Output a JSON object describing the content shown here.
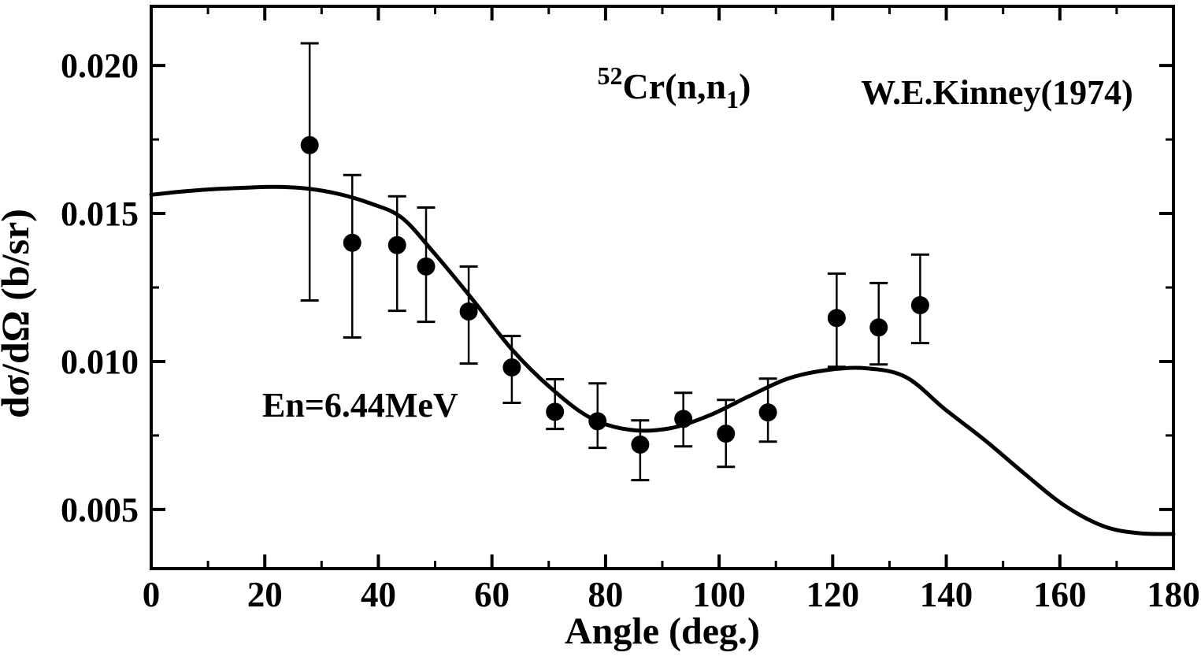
{
  "chart_data": {
    "type": "scatter",
    "title": "",
    "xlabel": "Angle (deg.)",
    "ylabel": "dσ/dΩ (b/sr)",
    "xlim": [
      0,
      180
    ],
    "ylim": [
      0.003,
      0.022
    ],
    "grid": false,
    "legend_position": "none",
    "x_major_ticks": [
      0,
      20,
      40,
      60,
      80,
      100,
      120,
      140,
      160,
      180
    ],
    "x_minor_ticks": [
      10,
      30,
      50,
      70,
      90,
      110,
      130,
      150,
      170
    ],
    "x_tick_labels": [
      "0",
      "20",
      "40",
      "60",
      "80",
      "100",
      "120",
      "140",
      "160",
      "180"
    ],
    "y_major_ticks": [
      0.005,
      0.01,
      0.015,
      0.02
    ],
    "y_minor_ticks": [
      0.0075,
      0.0125,
      0.0175
    ],
    "y_tick_labels": [
      "0.005",
      "0.010",
      "0.015",
      "0.020"
    ],
    "annotations": {
      "reaction": {
        "sup": "52",
        "body": "Cr(n,n",
        "sub": "1",
        "tail": ")"
      },
      "reference": "W.E.Kinney(1974)",
      "energy": "En=6.44MeV"
    },
    "series": [
      {
        "name": "W.E.Kinney(1974) experimental data",
        "type": "errorbar-scatter",
        "marker": "filled-circle",
        "color": "#000000",
        "points": [
          {
            "angle_deg": 27.9,
            "value": 0.01731,
            "upper": 0.02075,
            "lower": 0.01206
          },
          {
            "angle_deg": 35.4,
            "value": 0.01401,
            "upper": 0.0163,
            "lower": 0.01081
          },
          {
            "angle_deg": 43.3,
            "value": 0.01393,
            "upper": 0.01558,
            "lower": 0.01171
          },
          {
            "angle_deg": 48.4,
            "value": 0.01321,
            "upper": 0.0152,
            "lower": 0.01134
          },
          {
            "angle_deg": 55.9,
            "value": 0.01169,
            "upper": 0.01321,
            "lower": 0.00993
          },
          {
            "angle_deg": 63.5,
            "value": 0.0098,
            "upper": 0.01086,
            "lower": 0.0086
          },
          {
            "angle_deg": 71.1,
            "value": 0.0083,
            "upper": 0.0094,
            "lower": 0.00772
          },
          {
            "angle_deg": 78.6,
            "value": 0.00798,
            "upper": 0.00926,
            "lower": 0.00708
          },
          {
            "angle_deg": 86.1,
            "value": 0.00719,
            "upper": 0.00801,
            "lower": 0.00599
          },
          {
            "angle_deg": 93.7,
            "value": 0.00806,
            "upper": 0.00894,
            "lower": 0.00713
          },
          {
            "angle_deg": 101.2,
            "value": 0.00756,
            "upper": 0.0087,
            "lower": 0.00644
          },
          {
            "angle_deg": 108.6,
            "value": 0.00828,
            "upper": 0.00942,
            "lower": 0.00729
          },
          {
            "angle_deg": 120.7,
            "value": 0.01147,
            "upper": 0.01297,
            "lower": 0.00982
          },
          {
            "angle_deg": 128.1,
            "value": 0.01115,
            "upper": 0.01265,
            "lower": 0.0099
          },
          {
            "angle_deg": 135.4,
            "value": 0.0119,
            "upper": 0.01361,
            "lower": 0.01062
          }
        ]
      },
      {
        "name": "model calculation curve",
        "type": "line",
        "color": "#000000",
        "points": [
          [
            0,
            0.01563
          ],
          [
            5.3,
            0.01574
          ],
          [
            10.8,
            0.01582
          ],
          [
            16.4,
            0.01587
          ],
          [
            21.9,
            0.0159
          ],
          [
            27.5,
            0.01584
          ],
          [
            33.0,
            0.01566
          ],
          [
            38.6,
            0.01534
          ],
          [
            44.1,
            0.01486
          ],
          [
            49.7,
            0.01369
          ],
          [
            56.6,
            0.01209
          ],
          [
            63.5,
            0.01041
          ],
          [
            70.5,
            0.00908
          ],
          [
            77.4,
            0.00809
          ],
          [
            84.3,
            0.00769
          ],
          [
            91.3,
            0.00774
          ],
          [
            98.2,
            0.00817
          ],
          [
            105.1,
            0.00881
          ],
          [
            112.1,
            0.00942
          ],
          [
            119.0,
            0.00971
          ],
          [
            125.9,
            0.00977
          ],
          [
            132.9,
            0.00947
          ],
          [
            139.8,
            0.00838
          ],
          [
            146.8,
            0.00734
          ],
          [
            153.7,
            0.00622
          ],
          [
            160.6,
            0.00516
          ],
          [
            167.6,
            0.00444
          ],
          [
            173.8,
            0.0042
          ],
          [
            180,
            0.00417
          ]
        ]
      }
    ]
  }
}
